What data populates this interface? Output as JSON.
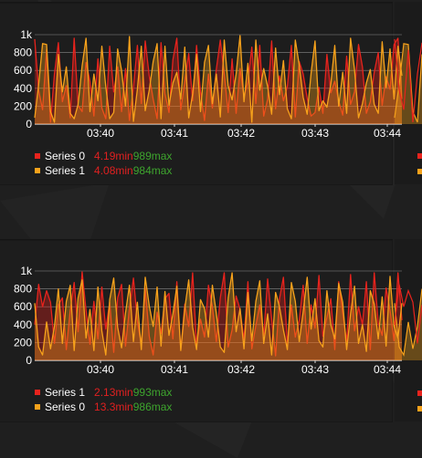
{
  "theme": {
    "series0_color": "#e8231d",
    "series1_color": "#f7a21b",
    "axis_text_color": "#ffffff",
    "grid_color": "#b7b7b7",
    "min_color": "#e02020",
    "max_color": "#3ea52e"
  },
  "chart_data": [
    {
      "type": "area",
      "x_ticks": [
        "03:40",
        "03:41",
        "03:42",
        "03:43",
        "03:44"
      ],
      "y_ticks": [
        "0",
        "200",
        "400",
        "600",
        "800",
        "1k"
      ],
      "ylim": [
        0,
        1000
      ],
      "grid": true,
      "legend_placement": "bottom-left",
      "series": [
        {
          "name": "Series 0",
          "color": "#e8231d",
          "min_label": "4.19min",
          "max_label": "989max",
          "values": [
            950,
            380,
            160,
            830,
            20,
            560,
            910,
            250,
            430,
            70,
            960,
            210,
            140,
            690,
            480,
            90,
            730,
            180,
            60,
            870,
            360,
            640,
            140,
            620,
            40,
            410,
            880,
            230,
            930,
            540,
            280,
            60,
            910,
            340,
            130,
            720,
            960,
            160,
            470,
            790,
            260,
            880,
            360,
            40,
            560,
            180,
            610,
            940,
            560,
            130,
            730,
            120,
            620,
            310,
            470,
            860,
            230,
            880,
            90,
            280,
            930,
            170,
            540,
            260,
            420,
            880,
            80,
            700,
            560,
            290,
            90,
            130,
            410,
            120,
            780,
            350,
            480,
            260,
            100,
            760,
            220,
            360,
            890,
            640,
            120,
            250,
            580,
            800,
            210,
            530,
            390,
            890,
            960,
            280
          ]
        },
        {
          "name": "Series 1",
          "color": "#f7a21b",
          "min_label": "4.08min",
          "max_label": "984max",
          "values": [
            70,
            440,
            900,
            890,
            140,
            20,
            780,
            360,
            640,
            120,
            60,
            220,
            650,
            960,
            140,
            560,
            260,
            870,
            420,
            60,
            130,
            840,
            600,
            200,
            980,
            30,
            390,
            870,
            150,
            380,
            700,
            900,
            60,
            870,
            210,
            460,
            580,
            280,
            860,
            70,
            340,
            780,
            140,
            690,
            880,
            230,
            560,
            80,
            940,
            430,
            270,
            560,
            990,
            250,
            680,
            20,
            940,
            380,
            620,
            420,
            110,
            850,
            330,
            710,
            170,
            60,
            940,
            660,
            300,
            110,
            570,
            930,
            150,
            260,
            190,
            450,
            880,
            200,
            580,
            120,
            960,
            610,
            70,
            230,
            460,
            610,
            220,
            120,
            920,
            410,
            840,
            280,
            870,
            540
          ]
        }
      ]
    },
    {
      "type": "area",
      "x_ticks": [
        "03:40",
        "03:41",
        "03:42",
        "03:43",
        "03:44"
      ],
      "y_ticks": [
        "0",
        "200",
        "400",
        "600",
        "800",
        "1k"
      ],
      "ylim": [
        0,
        1000
      ],
      "grid": true,
      "legend_placement": "bottom-left",
      "series": [
        {
          "name": "Series 1",
          "color": "#e8231d",
          "min_label": "2.13min",
          "max_label": "993max",
          "values": [
            400,
            850,
            600,
            780,
            650,
            190,
            620,
            700,
            120,
            560,
            870,
            320,
            990,
            560,
            180,
            660,
            240,
            820,
            350,
            650,
            90,
            700,
            850,
            160,
            580,
            920,
            440,
            180,
            810,
            270,
            60,
            540,
            300,
            690,
            750,
            240,
            880,
            120,
            630,
            380,
            980,
            170,
            460,
            260,
            840,
            600,
            210,
            700,
            980,
            150,
            340,
            720,
            570,
            230,
            880,
            130,
            390,
            620,
            280,
            910,
            470,
            50,
            690,
            930,
            180,
            620,
            260,
            450,
            840,
            190,
            620,
            360,
            950,
            270,
            480,
            690,
            120,
            880,
            530,
            210,
            960,
            330,
            600,
            400,
            880,
            120,
            980,
            420,
            280,
            810,
            560,
            220,
            980,
            450
          ]
        },
        {
          "name": "Series 0",
          "color": "#f7a21b",
          "min_label": "13.3min",
          "max_label": "986max",
          "values": [
            640,
            150,
            60,
            430,
            130,
            380,
            800,
            190,
            660,
            840,
            110,
            700,
            900,
            250,
            570,
            110,
            820,
            330,
            60,
            680,
            920,
            370,
            140,
            530,
            840,
            210,
            650,
            120,
            930,
            610,
            380,
            820,
            160,
            770,
            280,
            520,
            830,
            110,
            580,
            900,
            370,
            120,
            680,
            580,
            260,
            840,
            530,
            150,
            90,
            700,
            980,
            320,
            580,
            130,
            760,
            220,
            660,
            890,
            190,
            520,
            60,
            760,
            600,
            340,
            120,
            870,
            660,
            210,
            540,
            930,
            350,
            690,
            220,
            150,
            780,
            400,
            240,
            860,
            650,
            120,
            520,
            830,
            190,
            400,
            100,
            780,
            630,
            240,
            710,
            160,
            940,
            380,
            250,
            640
          ]
        }
      ]
    }
  ],
  "side_legend_colors": [
    "#e8231d",
    "#f7a21b"
  ]
}
